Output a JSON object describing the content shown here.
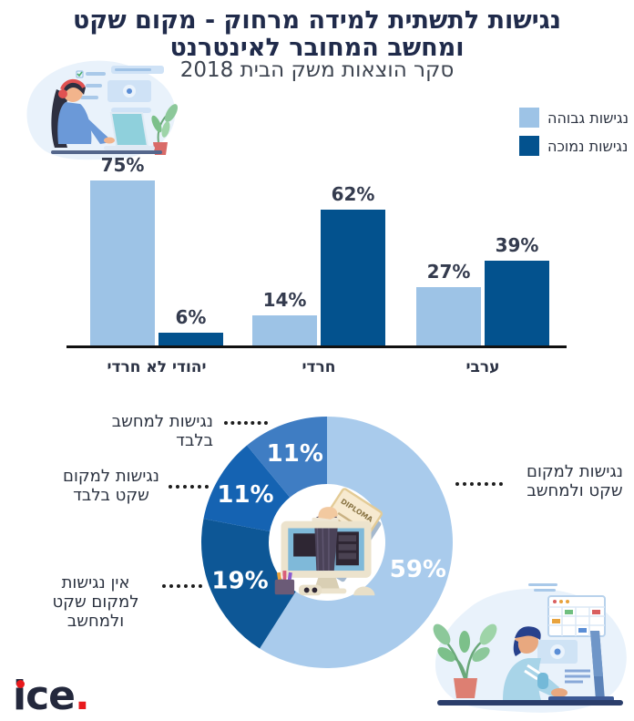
{
  "header": {
    "title_line1": "נגישות לתשתית למידה מרחוק - מקום שקט",
    "title_line2": "ומחשב המחובר לאינטרנט",
    "subtitle": "סקר הוצאות משק הבית 2018"
  },
  "legend": [
    {
      "label": "נגישות גבוהה",
      "color": "#9dc3e6"
    },
    {
      "label": "נגישות נמוכה",
      "color": "#03528e"
    }
  ],
  "chart_data": [
    {
      "type": "bar",
      "categories": [
        "יהודי לא חרדי",
        "חרדי",
        "ערבי"
      ],
      "series": [
        {
          "name": "נגישות גבוהה",
          "color": "#9dc3e6",
          "values": [
            75,
            14,
            27
          ]
        },
        {
          "name": "נגישות נמוכה",
          "color": "#03528e",
          "values": [
            6,
            62,
            39
          ]
        }
      ],
      "value_suffix": "%",
      "ylim": [
        0,
        80
      ],
      "grid": false,
      "legend_position": "top-right"
    },
    {
      "type": "donut",
      "start_angle_deg": 0,
      "direction": "clockwise",
      "value_suffix": "%",
      "slices": [
        {
          "label": "נגישות למקום שקט ולמחשב",
          "display_lines": [
            "נגישות למקום",
            "שקט ולמחשב"
          ],
          "value": 59,
          "color": "#a9cbec"
        },
        {
          "label": "אין נגישות למקום שקט ולמחשב",
          "display_lines": [
            "אין נגישות",
            "למקום שקט ולמחשב"
          ],
          "value": 19,
          "color": "#0d5796"
        },
        {
          "label": "נגישות למקום שקט בלבד",
          "display_lines": [
            "נגישות למקום",
            "שקט בלבד"
          ],
          "value": 11,
          "color": "#1563b2"
        },
        {
          "label": "נגישות למחשב בלבד",
          "display_lines": [
            "נגישות למחשב בלבד"
          ],
          "value": 11,
          "color": "#3f7dc3"
        }
      ]
    }
  ],
  "logo": {
    "brand": "ice",
    "suffix": "."
  }
}
